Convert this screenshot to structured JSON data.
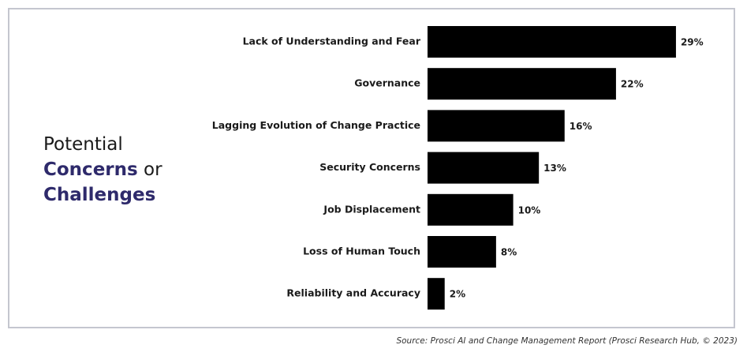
{
  "title": {
    "line1": "Potential",
    "line2_accent": "Concerns",
    "line2_rest": " or",
    "line3_accent": "Challenges"
  },
  "colors": {
    "bar": "#000000",
    "accent": "#2e2a6b",
    "frame": "#c4c6cf"
  },
  "chart_data": {
    "type": "bar",
    "orientation": "horizontal",
    "categories": [
      "Lack of Understanding and Fear",
      "Governance",
      "Lagging Evolution of Change Practice",
      "Security Concerns",
      "Job Displacement",
      "Loss of Human Touch",
      "Reliability and Accuracy"
    ],
    "values": [
      29,
      22,
      16,
      13,
      10,
      8,
      2
    ],
    "value_labels": [
      "29%",
      "22%",
      "16%",
      "13%",
      "10%",
      "8%",
      "2%"
    ],
    "unit": "%",
    "grid": false,
    "legend": "none"
  },
  "source": "Source: Prosci AI and Change Management Report (Prosci Research Hub, © 2023)"
}
